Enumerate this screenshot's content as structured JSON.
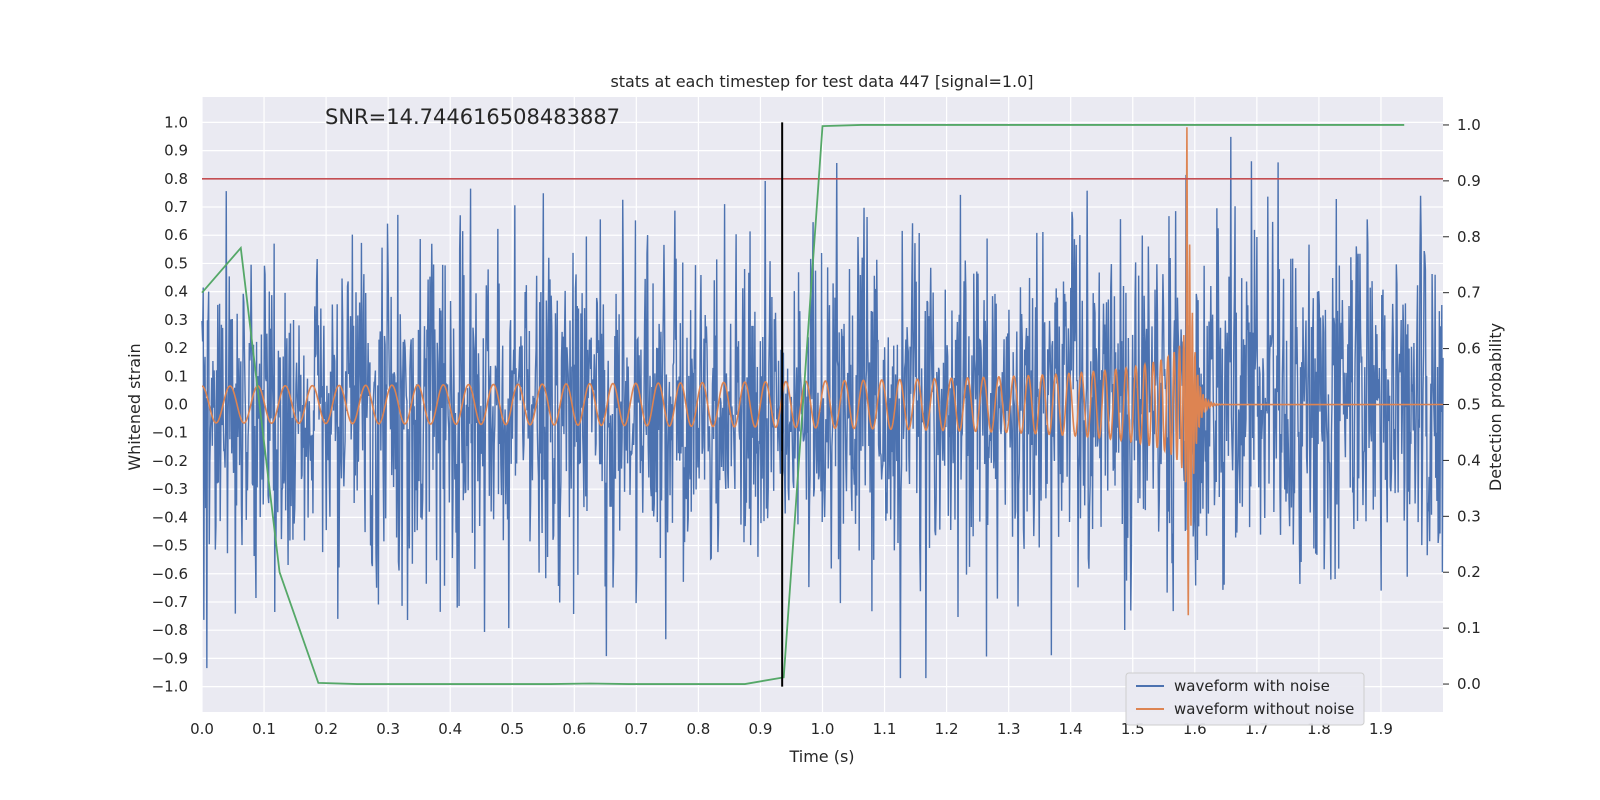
{
  "chart_data": {
    "type": "line",
    "title": "stats at each timestep for test data 447 [signal=1.0]",
    "xlabel": "Time (s)",
    "ylabel": "Whitened strain",
    "ylabel_right": "Detection probability",
    "xlim": [
      0.0,
      2.0
    ],
    "ylim": [
      -1.09,
      1.09
    ],
    "ylim_right": [
      -0.05,
      1.05
    ],
    "x_ticks": [
      "0.0",
      "0.1",
      "0.2",
      "0.3",
      "0.4",
      "0.5",
      "0.6",
      "0.7",
      "0.8",
      "0.9",
      "1.0",
      "1.1",
      "1.2",
      "1.3",
      "1.4",
      "1.5",
      "1.6",
      "1.7",
      "1.8",
      "1.9"
    ],
    "y_ticks": [
      "1.0",
      "0.9",
      "0.8",
      "0.7",
      "0.6",
      "0.5",
      "0.4",
      "0.3",
      "0.2",
      "0.1",
      "0.0",
      "−0.1",
      "−0.2",
      "−0.3",
      "−0.4",
      "−0.5",
      "−0.6",
      "−0.7",
      "−0.8",
      "−0.9",
      "−1.0"
    ],
    "y_right_ticks": [
      "1.0",
      "0.9",
      "0.8",
      "0.7",
      "0.6",
      "0.5",
      "0.4",
      "0.3",
      "0.2",
      "0.1",
      "0.0"
    ],
    "annotation": "SNR=14.744616508483887",
    "threshold": {
      "value": 0.8,
      "color": "#c44e52"
    },
    "detection_time": {
      "x": 0.935,
      "color": "#000000"
    },
    "series": [
      {
        "name": "waveform with noise",
        "color": "#4c72b0",
        "kind": "noise",
        "x_range": [
          0.0,
          2.0
        ],
        "amplitude": 0.3,
        "samples": 2048
      },
      {
        "name": "waveform without noise",
        "color": "#dd8452",
        "kind": "chirp",
        "x_range": [
          0.0,
          1.65
        ],
        "merger_time": 1.59,
        "base_amplitude": 0.065,
        "peak_amplitude": 0.7
      },
      {
        "name": "detection probability",
        "color": "#55a868",
        "axis": "right",
        "x": [
          0.0,
          0.0625,
          0.125,
          0.1875,
          0.25,
          0.3125,
          0.375,
          0.4375,
          0.5,
          0.5625,
          0.625,
          0.6875,
          0.75,
          0.8125,
          0.875,
          0.9375,
          1.0,
          1.0625,
          1.125,
          1.1875,
          1.25,
          1.3125,
          1.375,
          1.4375,
          1.5,
          1.5625,
          1.625,
          1.6875,
          1.75,
          1.8125,
          1.875,
          1.9375
        ],
        "y": [
          0.7,
          0.78,
          0.2,
          0.002,
          0.0,
          0.0,
          0.0,
          0.0,
          0.0,
          0.0,
          0.001,
          0.0,
          0.0,
          0.0,
          0.0,
          0.012,
          0.998,
          1.0,
          1.0,
          1.0,
          1.0,
          1.0,
          1.0,
          1.0,
          1.0,
          1.0,
          1.0,
          1.0,
          1.0,
          1.0,
          1.0,
          1.0
        ]
      }
    ],
    "legend": {
      "location": "lower-right",
      "entries": [
        "waveform with noise",
        "waveform without noise"
      ]
    }
  }
}
